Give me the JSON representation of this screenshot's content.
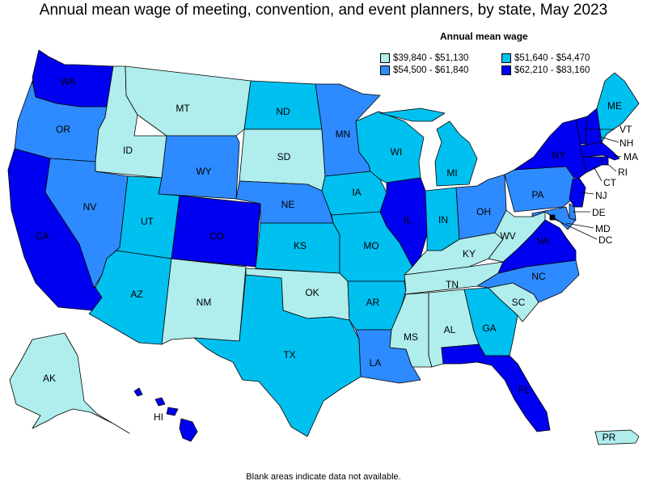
{
  "title": "Annual mean wage of meeting, convention, and event planners, by state, May 2023",
  "legend": {
    "title": "Annual mean wage",
    "items": [
      {
        "label": "$39,840 - $51,130",
        "color": "#b0eded"
      },
      {
        "label": "$51,640 - $54,470",
        "color": "#00c0f0"
      },
      {
        "label": "$54,500 - $61,840",
        "color": "#2e8bff"
      },
      {
        "label": "$62,210 - $83,160",
        "color": "#0000f0"
      }
    ]
  },
  "footnote": "Blank areas indicate data not available.",
  "states": {
    "WA": {
      "label": "WA",
      "tier": 3
    },
    "OR": {
      "label": "OR",
      "tier": 2
    },
    "CA": {
      "label": "CA",
      "tier": 3
    },
    "ID": {
      "label": "ID",
      "tier": 0
    },
    "NV": {
      "label": "NV",
      "tier": 2
    },
    "MT": {
      "label": "MT",
      "tier": 0
    },
    "WY": {
      "label": "WY",
      "tier": 2
    },
    "UT": {
      "label": "UT",
      "tier": 1
    },
    "AZ": {
      "label": "AZ",
      "tier": 1
    },
    "CO": {
      "label": "CO",
      "tier": 3
    },
    "NM": {
      "label": "NM",
      "tier": 0
    },
    "ND": {
      "label": "ND",
      "tier": 1
    },
    "SD": {
      "label": "SD",
      "tier": 0
    },
    "NE": {
      "label": "NE",
      "tier": 2
    },
    "KS": {
      "label": "KS",
      "tier": 1
    },
    "OK": {
      "label": "OK",
      "tier": 0
    },
    "TX": {
      "label": "TX",
      "tier": 1
    },
    "MN": {
      "label": "MN",
      "tier": 2
    },
    "IA": {
      "label": "IA",
      "tier": 1
    },
    "MO": {
      "label": "MO",
      "tier": 1
    },
    "AR": {
      "label": "AR",
      "tier": 1
    },
    "LA": {
      "label": "LA",
      "tier": 2
    },
    "WI": {
      "label": "WI",
      "tier": 1
    },
    "IL": {
      "label": "IL",
      "tier": 3
    },
    "MI": {
      "label": "MI",
      "tier": 1
    },
    "IN": {
      "label": "IN",
      "tier": 1
    },
    "OH": {
      "label": "OH",
      "tier": 2
    },
    "KY": {
      "label": "KY",
      "tier": 0
    },
    "TN": {
      "label": "TN",
      "tier": 0
    },
    "MS": {
      "label": "MS",
      "tier": 0
    },
    "AL": {
      "label": "AL",
      "tier": 0
    },
    "GA": {
      "label": "GA",
      "tier": 1
    },
    "FL": {
      "label": "FL",
      "tier": 3
    },
    "SC": {
      "label": "SC",
      "tier": 0
    },
    "NC": {
      "label": "NC",
      "tier": 2
    },
    "VA": {
      "label": "VA",
      "tier": 3
    },
    "WV": {
      "label": "WV",
      "tier": 0
    },
    "PA": {
      "label": "PA",
      "tier": 2
    },
    "NY": {
      "label": "NY",
      "tier": 3
    },
    "ME": {
      "label": "ME",
      "tier": 1
    },
    "VT": {
      "label": "VT",
      "tier": 3
    },
    "NH": {
      "label": "NH",
      "tier": 3
    },
    "MA": {
      "label": "MA",
      "tier": 3
    },
    "RI": {
      "label": "RI",
      "tier": 3
    },
    "CT": {
      "label": "CT",
      "tier": 3
    },
    "NJ": {
      "label": "NJ",
      "tier": 3
    },
    "DE": {
      "label": "DE",
      "tier": 2
    },
    "MD": {
      "label": "MD",
      "tier": 2
    },
    "DC": {
      "label": "DC",
      "tier": 3
    },
    "AK": {
      "label": "AK",
      "tier": 0
    },
    "HI": {
      "label": "HI",
      "tier": 3
    },
    "PR": {
      "label": "PR",
      "tier": 0
    }
  }
}
